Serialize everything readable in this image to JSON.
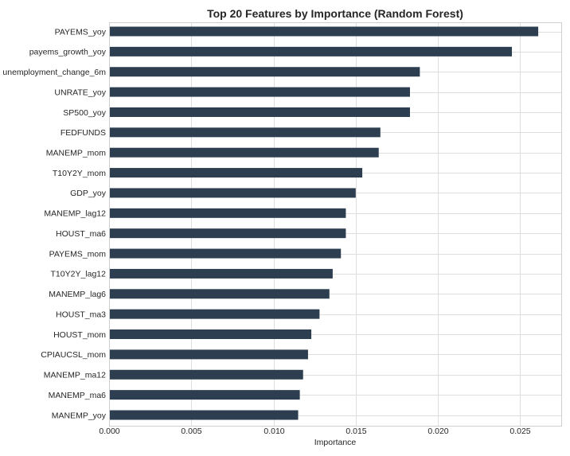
{
  "chart_data": {
    "type": "bar",
    "orientation": "horizontal",
    "title": "Top 20 Features by Importance (Random Forest)",
    "xlabel": "Importance",
    "ylabel": "",
    "xlim": [
      0,
      0.0275
    ],
    "xticks": [
      "0.000",
      "0.005",
      "0.010",
      "0.015",
      "0.020",
      "0.025"
    ],
    "grid": true,
    "bar_color": "#2d3e50",
    "categories": [
      "PAYEMS_yoy",
      "payems_growth_yoy",
      "unemployment_change_6m",
      "UNRATE_yoy",
      "SP500_yoy",
      "FEDFUNDS",
      "MANEMP_mom",
      "T10Y2Y_mom",
      "GDP_yoy",
      "MANEMP_lag12",
      "HOUST_ma6",
      "PAYEMS_mom",
      "T10Y2Y_lag12",
      "MANEMP_lag6",
      "HOUST_ma3",
      "HOUST_mom",
      "CPIAUCSL_mom",
      "MANEMP_ma12",
      "MANEMP_ma6",
      "MANEMP_yoy"
    ],
    "values": [
      0.0261,
      0.0245,
      0.0189,
      0.0183,
      0.0183,
      0.0165,
      0.0164,
      0.0154,
      0.015,
      0.0144,
      0.0144,
      0.0141,
      0.0136,
      0.0134,
      0.0128,
      0.0123,
      0.0121,
      0.0118,
      0.0116,
      0.0115
    ]
  }
}
